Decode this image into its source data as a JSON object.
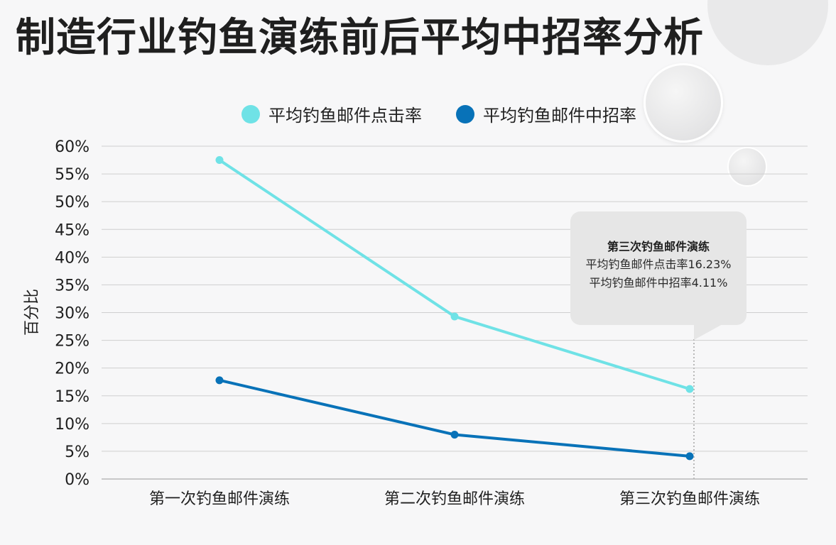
{
  "title": "制造行业钓鱼演练前后平均中招率分析",
  "colors": {
    "series_click": "#6fe2e6",
    "series_compromise": "#0872b8",
    "grid": "#cfcfcf",
    "axis_text": "#1f1f1f"
  },
  "legend": {
    "click_label": "平均钓鱼邮件点击率",
    "compromise_label": "平均钓鱼邮件中招率"
  },
  "tooltip": {
    "title": "第三次钓鱼邮件演练",
    "line1": "平均钓鱼邮件点击率16.23%",
    "line2": "平均钓鱼邮件中招率4.11%"
  },
  "chart_data": {
    "type": "line",
    "title": "制造行业钓鱼演练前后平均中招率分析",
    "categories": [
      "第一次钓鱼邮件演练",
      "第二次钓鱼邮件演练",
      "第三次钓鱼邮件演练"
    ],
    "series": [
      {
        "name": "平均钓鱼邮件点击率",
        "values": [
          57.5,
          29.3,
          16.23
        ]
      },
      {
        "name": "平均钓鱼邮件中招率",
        "values": [
          17.8,
          8.0,
          4.11
        ]
      }
    ],
    "xlabel": "",
    "ylabel": "百分比",
    "ylim": [
      0,
      60
    ],
    "yticks": [
      "0%",
      "5%",
      "10%",
      "15%",
      "20%",
      "25%",
      "30%",
      "35%",
      "40%",
      "45%",
      "50%",
      "55%",
      "60%"
    ],
    "grid": true,
    "legend_position": "top"
  }
}
